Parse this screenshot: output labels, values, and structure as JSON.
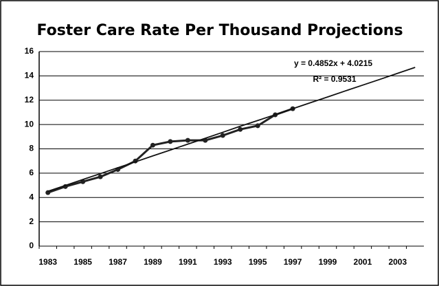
{
  "chart_data": {
    "type": "line",
    "title": "Foster Care Rate Per Thousand Projections",
    "categories": [
      "1983",
      null,
      "1985",
      null,
      "1987",
      null,
      "1989",
      null,
      "1991",
      null,
      "1993",
      null,
      "1995",
      null,
      "1997",
      null,
      "1999",
      null,
      "2001",
      null,
      "2003",
      null
    ],
    "series": [
      {
        "color": "#222222",
        "values": [
          4.4,
          4.9,
          5.3,
          5.7,
          6.3,
          7.0,
          8.3,
          8.6,
          8.7,
          8.7,
          9.1,
          9.6,
          9.9,
          10.8,
          11.3,
          null,
          null,
          null,
          null,
          null,
          null,
          null
        ]
      },
      {
        "color": "#111111",
        "values": [
          4.51,
          4.99,
          5.48,
          5.96,
          6.45,
          6.93,
          7.42,
          7.9,
          8.39,
          8.87,
          9.36,
          9.86,
          10.33,
          10.81,
          11.3,
          11.79,
          12.27,
          12.76,
          13.24,
          13.72,
          14.21,
          14.7
        ]
      }
    ],
    "annotations": [
      "y = 0.4852x + 4.0215",
      "R² = 0.9531"
    ],
    "ylim": [
      0,
      16
    ],
    "yticks": [
      0,
      2,
      4,
      6,
      8,
      10,
      12,
      14,
      16
    ],
    "grid": true
  }
}
